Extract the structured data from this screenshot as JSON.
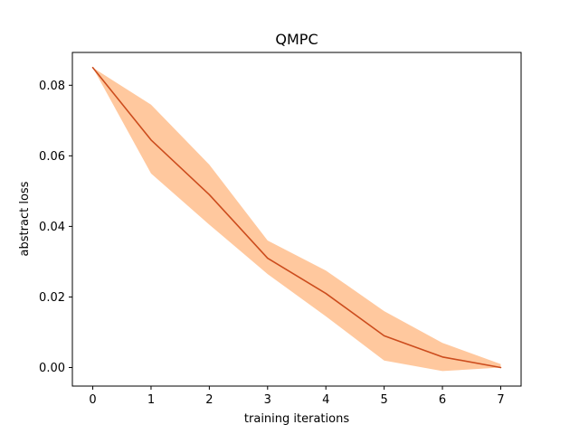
{
  "chart_data": {
    "type": "line",
    "title": "QMPC",
    "xlabel": "training iterations",
    "ylabel": "abstract loss",
    "x": [
      0,
      1,
      2,
      3,
      4,
      5,
      6,
      7
    ],
    "series": [
      {
        "values": [
          0.085,
          0.0645,
          0.049,
          0.031,
          0.021,
          0.009,
          0.003,
          0.0
        ],
        "lower": [
          0.085,
          0.055,
          0.0405,
          0.0265,
          0.0145,
          0.002,
          -0.001,
          0.0
        ],
        "upper": [
          0.085,
          0.0745,
          0.0575,
          0.036,
          0.0275,
          0.016,
          0.007,
          0.001
        ],
        "line_color": "#cc4c1d",
        "band_color": "#ffc89e"
      }
    ],
    "xticks": [
      0,
      1,
      2,
      3,
      4,
      5,
      6,
      7
    ],
    "xtick_labels": [
      "0",
      "1",
      "2",
      "3",
      "4",
      "5",
      "6",
      "7"
    ],
    "yticks": [
      0.0,
      0.02,
      0.04,
      0.06,
      0.08
    ],
    "ytick_labels": [
      "0.00",
      "0.02",
      "0.04",
      "0.06",
      "0.08"
    ],
    "xlim": [
      -0.35,
      7.35
    ],
    "ylim": [
      -0.00525,
      0.0893
    ],
    "grid": false,
    "legend": "none"
  }
}
